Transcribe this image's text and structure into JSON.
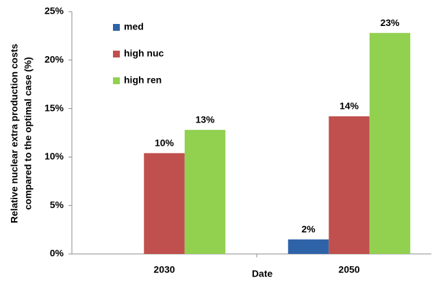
{
  "chart_data": {
    "type": "bar",
    "y_label": [
      "Relative nuclear extra production costs",
      "compared to the optimal case (%)"
    ],
    "x_label": "Date",
    "categories": [
      "2030",
      "2050"
    ],
    "series": [
      {
        "name": "med",
        "color": "#2f63a8",
        "values": [
          null,
          1.5
        ],
        "value_labels": [
          null,
          "2%"
        ]
      },
      {
        "name": "high nuc",
        "color": "#c0504d",
        "values": [
          10.4,
          14.2
        ],
        "value_labels": [
          "10%",
          "14%"
        ]
      },
      {
        "name": "high ren",
        "color": "#92d050",
        "values": [
          12.8,
          22.8
        ],
        "value_labels": [
          "13%",
          "23%"
        ]
      }
    ],
    "ylim": [
      0,
      25
    ],
    "yticks": [
      {
        "value": 0,
        "label": "0%"
      },
      {
        "value": 5,
        "label": "5%"
      },
      {
        "value": 10,
        "label": "10%"
      },
      {
        "value": 15,
        "label": "15%"
      },
      {
        "value": 20,
        "label": "20%"
      },
      {
        "value": 25,
        "label": "25%"
      }
    ],
    "grid": false
  }
}
